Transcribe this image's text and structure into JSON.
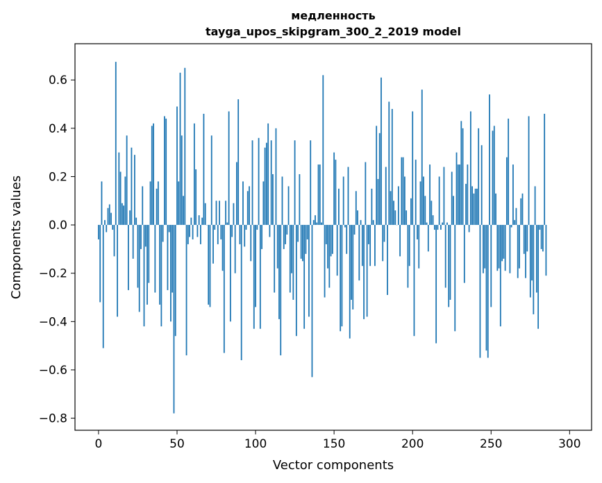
{
  "chart_data": {
    "type": "bar",
    "title": "медленность",
    "subtitle": "tayga_upos_skipgram_300_2_2019 model",
    "xlabel": "Vector components",
    "ylabel": "Components values",
    "xlim": [
      -15,
      314
    ],
    "ylim": [
      -0.85,
      0.75
    ],
    "xticks": [
      0,
      50,
      100,
      150,
      200,
      250,
      300
    ],
    "yticks": [
      -0.8,
      -0.6,
      -0.4,
      -0.2,
      0.0,
      0.2,
      0.4,
      0.6
    ],
    "ytick_labels": [
      "−0.8",
      "−0.6",
      "−0.4",
      "−0.2",
      "0.0",
      "0.2",
      "0.4",
      "0.6"
    ],
    "bar_color": "#1f77b4",
    "grid": false,
    "values": [
      -0.06,
      -0.32,
      0.18,
      -0.51,
      0.02,
      -0.03,
      0.07,
      0.085,
      0.05,
      -0.02,
      -0.13,
      0.675,
      -0.38,
      0.3,
      0.22,
      0.09,
      0.08,
      0.2,
      0.37,
      -0.27,
      0.06,
      0.32,
      -0.14,
      0.29,
      0.03,
      -0.26,
      -0.36,
      -0.1,
      0.16,
      -0.42,
      -0.09,
      -0.33,
      -0.24,
      0.18,
      0.41,
      0.42,
      -0.28,
      0.15,
      0.18,
      -0.33,
      -0.42,
      -0.07,
      0.45,
      0.44,
      -0.27,
      -0.03,
      -0.4,
      -0.28,
      -0.78,
      -0.46,
      0.49,
      0.18,
      0.63,
      0.37,
      0.12,
      0.65,
      -0.54,
      -0.08,
      -0.05,
      0.03,
      -0.06,
      0.42,
      0.23,
      -0.05,
      0.04,
      -0.08,
      0.03,
      0.46,
      0.09,
      0.0,
      -0.33,
      -0.34,
      0.37,
      -0.16,
      -0.02,
      0.1,
      -0.08,
      0.1,
      -0.06,
      -0.19,
      -0.53,
      0.1,
      0.01,
      0.47,
      -0.4,
      -0.05,
      0.09,
      -0.2,
      0.26,
      0.52,
      -0.08,
      -0.56,
      0.18,
      -0.09,
      -0.02,
      0.14,
      0.16,
      -0.15,
      0.35,
      -0.43,
      -0.34,
      -0.02,
      0.36,
      -0.43,
      -0.1,
      0.18,
      0.32,
      0.34,
      0.42,
      -0.05,
      0.35,
      0.21,
      -0.28,
      0.4,
      -0.18,
      -0.39,
      -0.54,
      0.2,
      -0.1,
      -0.08,
      -0.04,
      0.16,
      -0.28,
      -0.2,
      -0.31,
      0.35,
      -0.46,
      -0.07,
      0.21,
      -0.14,
      -0.15,
      -0.43,
      -0.12,
      -0.06,
      -0.38,
      0.35,
      -0.63,
      0.02,
      0.04,
      0.01,
      0.25,
      0.25,
      0.01,
      0.62,
      -0.3,
      -0.08,
      -0.18,
      -0.26,
      -0.13,
      -0.12,
      0.3,
      0.27,
      -0.21,
      0.15,
      -0.44,
      -0.42,
      0.2,
      -0.01,
      -0.12,
      0.24,
      -0.47,
      -0.31,
      -0.35,
      -0.04,
      0.14,
      0.06,
      -0.23,
      0.02,
      -0.17,
      -0.39,
      0.26,
      -0.38,
      -0.08,
      -0.17,
      0.15,
      0.02,
      -0.17,
      0.41,
      0.19,
      0.38,
      0.61,
      -0.15,
      -0.07,
      0.24,
      -0.29,
      0.51,
      0.14,
      0.48,
      0.1,
      0.06,
      0.0,
      0.16,
      -0.13,
      0.28,
      0.28,
      0.2,
      0.06,
      -0.26,
      -0.17,
      0.11,
      0.47,
      -0.46,
      0.27,
      -0.06,
      -0.18,
      0.18,
      0.56,
      0.2,
      0.12,
      0.01,
      -0.11,
      0.25,
      0.1,
      0.04,
      -0.02,
      -0.49,
      -0.02,
      0.2,
      -0.02,
      0.01,
      0.24,
      -0.26,
      0.01,
      -0.34,
      -0.31,
      0.22,
      0.12,
      -0.44,
      0.3,
      0.25,
      0.25,
      0.43,
      0.4,
      -0.24,
      0.17,
      0.25,
      -0.03,
      0.47,
      0.16,
      0.13,
      0.15,
      0.15,
      0.4,
      -0.55,
      0.33,
      -0.2,
      -0.18,
      -0.52,
      -0.55,
      0.54,
      -0.34,
      0.39,
      0.41,
      0.13,
      -0.19,
      -0.18,
      -0.42,
      -0.15,
      -0.14,
      -0.19,
      0.28,
      0.44,
      -0.2,
      -0.01,
      0.25,
      0.02,
      0.07,
      -0.22,
      -0.18,
      0.11,
      0.13,
      -0.12,
      -0.22,
      -0.11,
      0.45,
      -0.3,
      -0.23,
      -0.37,
      0.16,
      -0.28,
      -0.43,
      -0.02,
      -0.1,
      -0.11,
      0.46,
      -0.21
    ]
  }
}
